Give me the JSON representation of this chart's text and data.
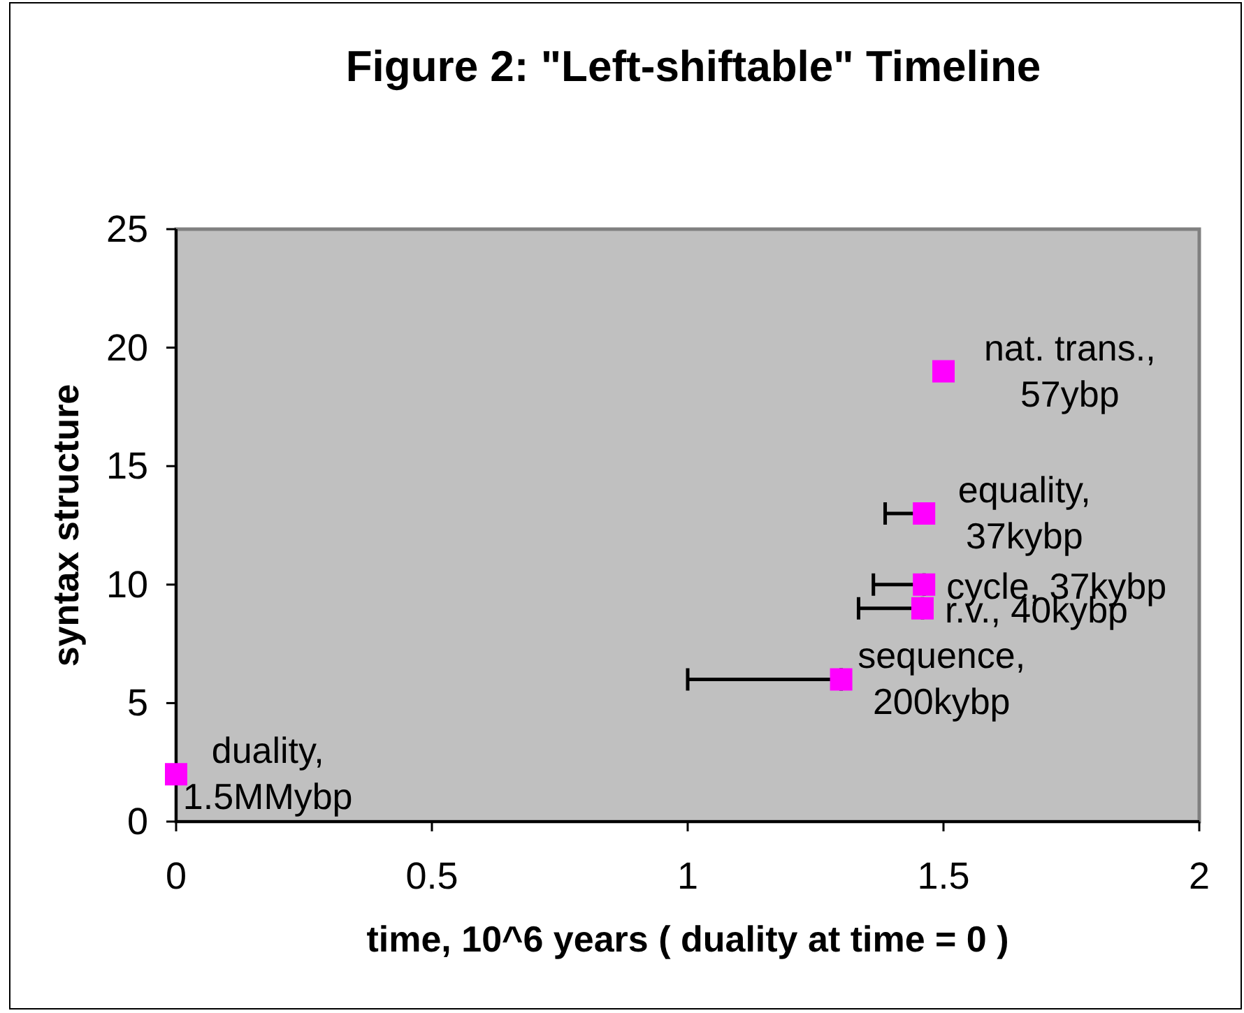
{
  "chart_data": {
    "type": "scatter",
    "title": "Figure 2: \"Left-shiftable\" Timeline",
    "xlabel": "time, 10^6 years ( duality at time = 0 )",
    "ylabel": "syntax structure",
    "x": [
      0,
      1.3,
      1.459,
      1.462,
      1.462,
      1.5
    ],
    "values": [
      2,
      6,
      9,
      10,
      13,
      19
    ],
    "color": "#ff00ff",
    "xerrors": [
      null,
      [
        1.0,
        1.3
      ],
      [
        1.334,
        1.459
      ],
      [
        1.363,
        1.462
      ],
      [
        1.386,
        1.462
      ],
      null
    ],
    "xlim": [
      0,
      2
    ],
    "xticks": [
      0,
      0.5,
      1,
      1.5,
      2
    ],
    "ylim": [
      0,
      25
    ],
    "yticks": [
      0,
      5,
      10,
      15,
      20,
      25
    ],
    "grid": false,
    "marker": "square",
    "annotations": [
      {
        "text": "duality,\n1.5MMybp",
        "x": 0,
        "y": 2
      },
      {
        "text": "sequence,\n200kybp",
        "x": 1.3,
        "y": 6
      },
      {
        "text": "r.v., 40kybp",
        "x": 1.459,
        "y": 9
      },
      {
        "text": "cycle, 37kybp",
        "x": 1.462,
        "y": 10
      },
      {
        "text": "equality,\n37kybp",
        "x": 1.462,
        "y": 13
      },
      {
        "text": "nat. trans.,\n57ybp",
        "x": 1.5,
        "y": 19
      }
    ]
  }
}
